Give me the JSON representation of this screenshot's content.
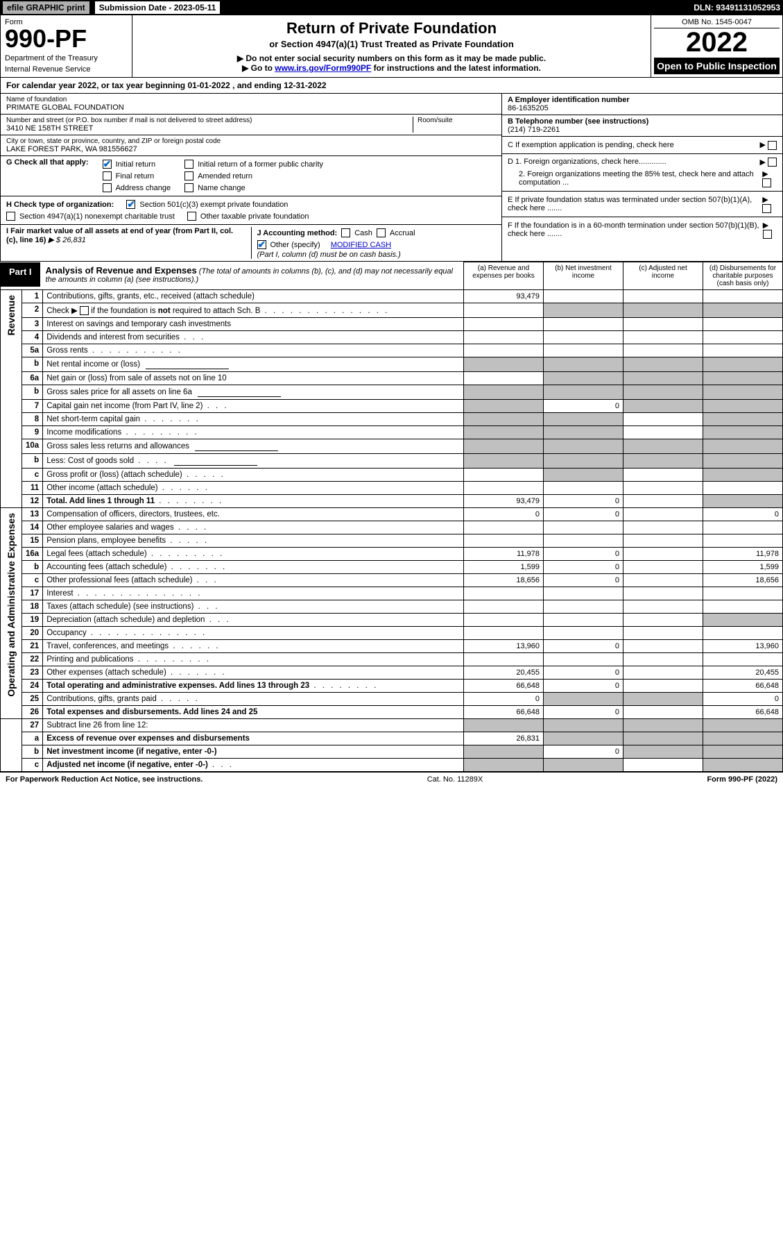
{
  "top_bar": {
    "efile": "efile GRAPHIC print",
    "submission_label": "Submission Date - 2023-05-11",
    "dln": "DLN: 93491131052953"
  },
  "header": {
    "form_label": "Form",
    "form_number": "990-PF",
    "dept": "Department of the Treasury",
    "irs": "Internal Revenue Service",
    "title": "Return of Private Foundation",
    "subtitle1": "or Section 4947(a)(1) Trust Treated as Private Foundation",
    "subtitle2a": "▶ Do not enter social security numbers on this form as it may be made public.",
    "subtitle2b_pre": "▶ Go to ",
    "subtitle2b_link": "www.irs.gov/Form990PF",
    "subtitle2b_post": " for instructions and the latest information.",
    "omb": "OMB No. 1545-0047",
    "year": "2022",
    "open_public": "Open to Public Inspection"
  },
  "cal_year": "For calendar year 2022, or tax year beginning 01-01-2022                       , and ending 12-31-2022",
  "info": {
    "name_label": "Name of foundation",
    "name": "PRIMATE GLOBAL FOUNDATION",
    "addr_label": "Number and street (or P.O. box number if mail is not delivered to street address)",
    "addr": "3410 NE 158TH STREET",
    "room_label": "Room/suite",
    "city_label": "City or town, state or province, country, and ZIP or foreign postal code",
    "city": "LAKE FOREST PARK, WA  981556627",
    "ein_label": "A Employer identification number",
    "ein": "86-1635205",
    "phone_label": "B Telephone number (see instructions)",
    "phone": "(214) 719-2261",
    "c_label": "C  If exemption application is pending, check here",
    "d1_label": "D 1. Foreign organizations, check here.............",
    "d2_label": "2. Foreign organizations meeting the 85% test, check here and attach computation ...",
    "e_label": "E  If private foundation status was terminated under section 507(b)(1)(A), check here .......",
    "f_label": "F  If the foundation is in a 60-month termination under section 507(b)(1)(B), check here .......",
    "g_label": "G Check all that apply:",
    "g_initial": "Initial return",
    "g_initial_former": "Initial return of a former public charity",
    "g_final": "Final return",
    "g_amended": "Amended return",
    "g_addr_change": "Address change",
    "g_name_change": "Name change",
    "h_label": "H Check type of organization:",
    "h_501c3": "Section 501(c)(3) exempt private foundation",
    "h_4947": "Section 4947(a)(1) nonexempt charitable trust",
    "h_other": "Other taxable private foundation",
    "i_label": "I Fair market value of all assets at end of year (from Part II, col. (c), line 16)",
    "i_value": "▶ $  26,831",
    "j_label": "J Accounting method:",
    "j_cash": "Cash",
    "j_accrual": "Accrual",
    "j_other": "Other (specify)",
    "j_other_val": "MODIFIED CASH",
    "j_note": "(Part I, column (d) must be on cash basis.)"
  },
  "part1": {
    "tab": "Part I",
    "title": "Analysis of Revenue and Expenses",
    "desc": " (The total of amounts in columns (b), (c), and (d) may not necessarily equal the amounts in column (a) (see instructions).)",
    "col_a": "(a)    Revenue and expenses per books",
    "col_b": "(b)    Net investment income",
    "col_c": "(c)    Adjusted net income",
    "col_d": "(d)    Disbursements for charitable purposes (cash basis only)"
  },
  "sections": {
    "revenue": "Revenue",
    "opadmin": "Operating and Administrative Expenses"
  },
  "rows": [
    {
      "n": "1",
      "desc": "Contributions, gifts, grants, etc., received (attach schedule)",
      "a": "93,479",
      "b": "",
      "c": "",
      "d": "",
      "sec": "rev"
    },
    {
      "n": "2",
      "desc": "Check ▶ ☐  if the foundation is not required to attach Sch. B",
      "dots": "   .   .   .   .   .   .   .   .   .   .   .   .   .   .   .",
      "a": "",
      "b": "",
      "c": "",
      "d": "",
      "sec": "rev",
      "grey_bcd": true
    },
    {
      "n": "3",
      "desc": "Interest on savings and temporary cash investments",
      "a": "",
      "b": "",
      "c": "",
      "d": "",
      "sec": "rev"
    },
    {
      "n": "4",
      "desc": "Dividends and interest from securities",
      "dots": "    .    .    .",
      "a": "",
      "b": "",
      "c": "",
      "d": "",
      "sec": "rev"
    },
    {
      "n": "5a",
      "desc": "Gross rents",
      "dots": "   .   .   .   .   .   .   .   .   .   .   .",
      "a": "",
      "b": "",
      "c": "",
      "d": "",
      "sec": "rev"
    },
    {
      "n": "b",
      "desc": "Net rental income or (loss)",
      "a": "",
      "b": "",
      "c": "",
      "d": "",
      "sec": "rev",
      "grey_abcd": true,
      "halfline": true
    },
    {
      "n": "6a",
      "desc": "Net gain or (loss) from sale of assets not on line 10",
      "a": "",
      "b": "",
      "c": "",
      "d": "",
      "sec": "rev",
      "grey_bcd": true
    },
    {
      "n": "b",
      "desc": "Gross sales price for all assets on line 6a",
      "a": "",
      "b": "",
      "c": "",
      "d": "",
      "sec": "rev",
      "grey_abcd": true,
      "halfline": true
    },
    {
      "n": "7",
      "desc": "Capital gain net income (from Part IV, line 2)",
      "dots": "   .   .   .",
      "a": "",
      "b": "0",
      "c": "",
      "d": "",
      "sec": "rev",
      "grey_a": true,
      "grey_cd": true
    },
    {
      "n": "8",
      "desc": "Net short-term capital gain",
      "dots": "   .   .   .   .   .   .   .",
      "a": "",
      "b": "",
      "c": "",
      "d": "",
      "sec": "rev",
      "grey_ab": true,
      "grey_d": true
    },
    {
      "n": "9",
      "desc": "Income modifications",
      "dots": "   .   .   .   .   .   .   .   .   .",
      "a": "",
      "b": "",
      "c": "",
      "d": "",
      "sec": "rev",
      "grey_ab": true,
      "grey_d": true
    },
    {
      "n": "10a",
      "desc": "Gross sales less returns and allowances",
      "a": "",
      "b": "",
      "c": "",
      "d": "",
      "sec": "rev",
      "grey_abcd": true,
      "halfline": true
    },
    {
      "n": "b",
      "desc": "Less: Cost of goods sold",
      "dots": "    .    .    .    .",
      "a": "",
      "b": "",
      "c": "",
      "d": "",
      "sec": "rev",
      "grey_abcd": true,
      "halfline": true
    },
    {
      "n": "c",
      "desc": "Gross profit or (loss) (attach schedule)",
      "dots": "   .   .   .   .   .",
      "a": "",
      "b": "",
      "c": "",
      "d": "",
      "sec": "rev",
      "grey_b": true,
      "grey_d": true
    },
    {
      "n": "11",
      "desc": "Other income (attach schedule)",
      "dots": "    .    .    .    .    .    .",
      "a": "",
      "b": "",
      "c": "",
      "d": "",
      "sec": "rev"
    },
    {
      "n": "12",
      "desc": "Total. Add lines 1 through 11",
      "dots": "   .   .   .   .   .   .   .   .",
      "a": "93,479",
      "b": "0",
      "c": "",
      "d": "",
      "sec": "rev",
      "bold": true,
      "grey_d": true
    },
    {
      "n": "13",
      "desc": "Compensation of officers, directors, trustees, etc.",
      "a": "0",
      "b": "0",
      "c": "",
      "d": "0",
      "sec": "exp"
    },
    {
      "n": "14",
      "desc": "Other employee salaries and wages",
      "dots": "    .    .    .    .",
      "a": "",
      "b": "",
      "c": "",
      "d": "",
      "sec": "exp"
    },
    {
      "n": "15",
      "desc": "Pension plans, employee benefits",
      "dots": "   .   .   .   .   .",
      "a": "",
      "b": "",
      "c": "",
      "d": "",
      "sec": "exp"
    },
    {
      "n": "16a",
      "desc": "Legal fees (attach schedule)",
      "dots": "  .  .  .  .  .  .  .  .  .",
      "a": "11,978",
      "b": "0",
      "c": "",
      "d": "11,978",
      "sec": "exp"
    },
    {
      "n": "b",
      "desc": "Accounting fees (attach schedule)",
      "dots": "  .  .  .  .  .  .  .",
      "a": "1,599",
      "b": "0",
      "c": "",
      "d": "1,599",
      "sec": "exp"
    },
    {
      "n": "c",
      "desc": "Other professional fees (attach schedule)",
      "dots": "    .    .    .",
      "a": "18,656",
      "b": "0",
      "c": "",
      "d": "18,656",
      "sec": "exp"
    },
    {
      "n": "17",
      "desc": "Interest",
      "dots": "  .  .  .  .  .  .  .  .  .  .  .  .  .  .  .",
      "a": "",
      "b": "",
      "c": "",
      "d": "",
      "sec": "exp"
    },
    {
      "n": "18",
      "desc": "Taxes (attach schedule) (see instructions)",
      "dots": "    .    .    .",
      "a": "",
      "b": "",
      "c": "",
      "d": "",
      "sec": "exp"
    },
    {
      "n": "19",
      "desc": "Depreciation (attach schedule) and depletion",
      "dots": "    .    .    .",
      "a": "",
      "b": "",
      "c": "",
      "d": "",
      "sec": "exp",
      "grey_d": true
    },
    {
      "n": "20",
      "desc": "Occupancy",
      "dots": "  .  .  .  .  .  .  .  .  .  .  .  .  .  .",
      "a": "",
      "b": "",
      "c": "",
      "d": "",
      "sec": "exp"
    },
    {
      "n": "21",
      "desc": "Travel, conferences, and meetings",
      "dots": "  .  .  .  .  .  .",
      "a": "13,960",
      "b": "0",
      "c": "",
      "d": "13,960",
      "sec": "exp"
    },
    {
      "n": "22",
      "desc": "Printing and publications",
      "dots": "  .  .  .  .  .  .  .  .  .",
      "a": "",
      "b": "",
      "c": "",
      "d": "",
      "sec": "exp"
    },
    {
      "n": "23",
      "desc": "Other expenses (attach schedule)",
      "dots": "  .  .  .  .  .  .  .",
      "a": "20,455",
      "b": "0",
      "c": "",
      "d": "20,455",
      "sec": "exp"
    },
    {
      "n": "24",
      "desc": "Total operating and administrative expenses. Add lines 13 through 23",
      "dots": "   .   .   .   .   .   .   .   .",
      "a": "66,648",
      "b": "0",
      "c": "",
      "d": "66,648",
      "sec": "exp",
      "bold": true
    },
    {
      "n": "25",
      "desc": "Contributions, gifts, grants paid",
      "dots": "    .    .    .    .    .",
      "a": "0",
      "b": "",
      "c": "",
      "d": "0",
      "sec": "exp",
      "grey_bc": true
    },
    {
      "n": "26",
      "desc": "Total expenses and disbursements. Add lines 24 and 25",
      "a": "66,648",
      "b": "0",
      "c": "",
      "d": "66,648",
      "sec": "exp",
      "bold": true
    },
    {
      "n": "27",
      "desc": "Subtract line 26 from line 12:",
      "a": "",
      "b": "",
      "c": "",
      "d": "",
      "sec": "none",
      "grey_abcd": true
    },
    {
      "n": "a",
      "desc": "Excess of revenue over expenses and disbursements",
      "a": "26,831",
      "b": "",
      "c": "",
      "d": "",
      "sec": "none",
      "bold": true,
      "grey_bcd": true
    },
    {
      "n": "b",
      "desc": "Net investment income (if negative, enter -0-)",
      "a": "",
      "b": "0",
      "c": "",
      "d": "",
      "sec": "none",
      "bold": true,
      "grey_a": true,
      "grey_cd": true
    },
    {
      "n": "c",
      "desc": "Adjusted net income (if negative, enter -0-)",
      "dots": "   .   .   .",
      "a": "",
      "b": "",
      "c": "",
      "d": "",
      "sec": "none",
      "bold": true,
      "grey_ab": true,
      "grey_d": true
    }
  ],
  "footer": {
    "left": "For Paperwork Reduction Act Notice, see instructions.",
    "mid": "Cat. No. 11289X",
    "right": "Form 990-PF (2022)"
  }
}
